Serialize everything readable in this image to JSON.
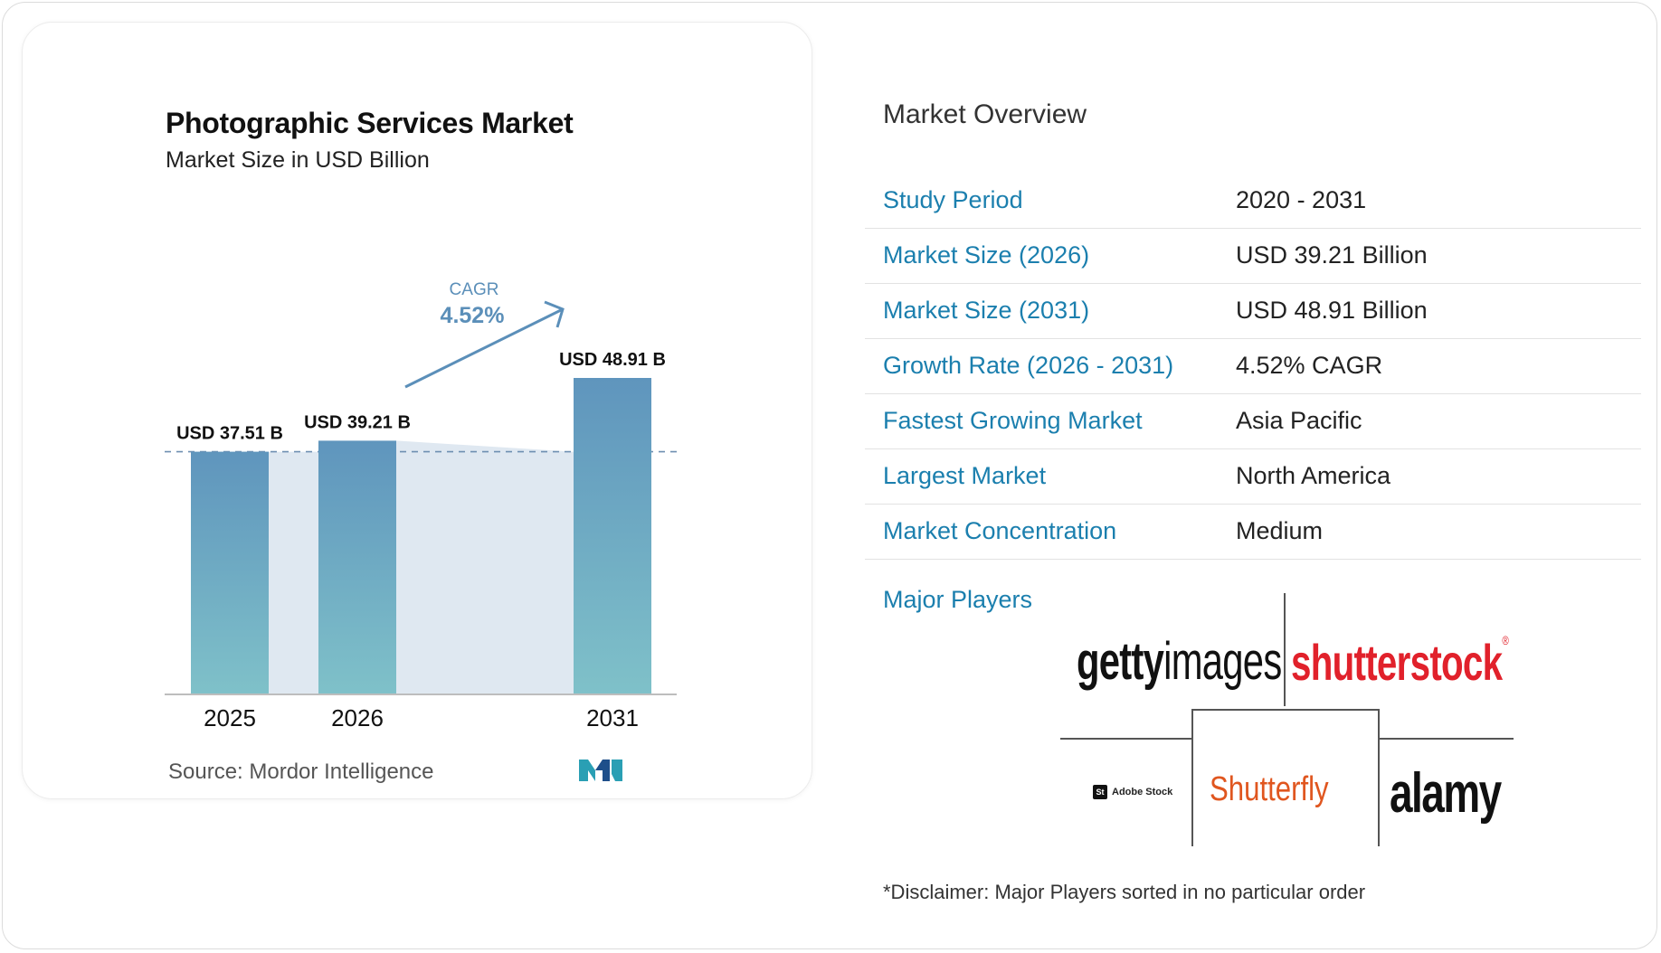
{
  "chart_data": {
    "type": "bar",
    "title": "Photographic Services Market",
    "subtitle": "Market Size in USD Billion",
    "categories": [
      "2025",
      "2026",
      "2031"
    ],
    "values": [
      37.51,
      39.21,
      48.91
    ],
    "value_labels": [
      "USD 37.51 B",
      "USD 39.21 B",
      "USD 48.91 B"
    ],
    "cagr_label": "CAGR",
    "cagr_value": "4.52%",
    "source": "Source:  Mordor Intelligence",
    "colors": {
      "bar_top": "#5f95bd",
      "bar_bottom": "#7fc1c9",
      "band": "#dfe8f1",
      "arrow": "#5b8fb9"
    }
  },
  "overview": {
    "title": "Market Overview",
    "rows": [
      {
        "label": "Study Period",
        "value": "2020 - 2031"
      },
      {
        "label": "Market Size (2026)",
        "value": "USD 39.21 Billion"
      },
      {
        "label": "Market Size (2031)",
        "value": "USD 48.91 Billion"
      },
      {
        "label": "Growth Rate (2026 - 2031)",
        "value": "4.52% CAGR"
      },
      {
        "label": "Fastest Growing Market",
        "value": "Asia Pacific"
      },
      {
        "label": "Largest Market",
        "value": "North America"
      },
      {
        "label": "Market Concentration",
        "value": "Medium"
      }
    ],
    "players_label": "Major Players",
    "players": {
      "getty_a": "getty",
      "getty_b": "images",
      "shutterstock": "shutterstock",
      "shutterstock_mark": "®",
      "adobe_box": "St",
      "adobe": "Adobe Stock",
      "shutterfly": "Shutterfly",
      "alamy": "alamy"
    },
    "disclaimer": "*Disclaimer: Major Players sorted in no particular order"
  }
}
